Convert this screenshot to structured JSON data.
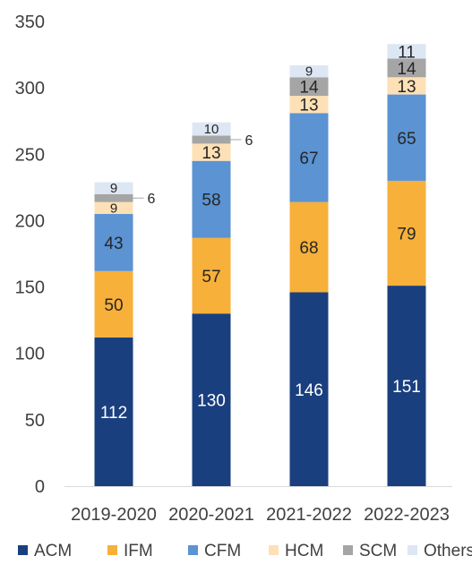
{
  "chart_data": {
    "type": "bar",
    "stacked": true,
    "categories": [
      "2019-2020",
      "2020-2021",
      "2021-2022",
      "2022-2023"
    ],
    "series": [
      {
        "name": "ACM",
        "values": [
          112,
          130,
          146,
          151
        ],
        "color": "#1a3f7f",
        "label_color": "#ffffff"
      },
      {
        "name": "IFM",
        "values": [
          50,
          57,
          68,
          79
        ],
        "color": "#f7b03a",
        "label_color": "#262626"
      },
      {
        "name": "CFM",
        "values": [
          43,
          58,
          67,
          65
        ],
        "color": "#5b93d3",
        "label_color": "#262626"
      },
      {
        "name": "HCM",
        "values": [
          9,
          13,
          13,
          13
        ],
        "color": "#fde0b5",
        "label_color": "#262626"
      },
      {
        "name": "SCM",
        "values": [
          6,
          6,
          14,
          14
        ],
        "color": "#a5a5a5",
        "label_color": "#262626"
      },
      {
        "name": "Others",
        "values": [
          9,
          10,
          9,
          11
        ],
        "color": "#dde7f3",
        "label_color": "#262626"
      }
    ],
    "ylim": [
      0,
      350
    ],
    "yticks": [
      0,
      50,
      100,
      150,
      200,
      250,
      300,
      350
    ],
    "title": "",
    "xlabel": "",
    "ylabel": "",
    "grid": false,
    "legend_position": "bottom"
  }
}
